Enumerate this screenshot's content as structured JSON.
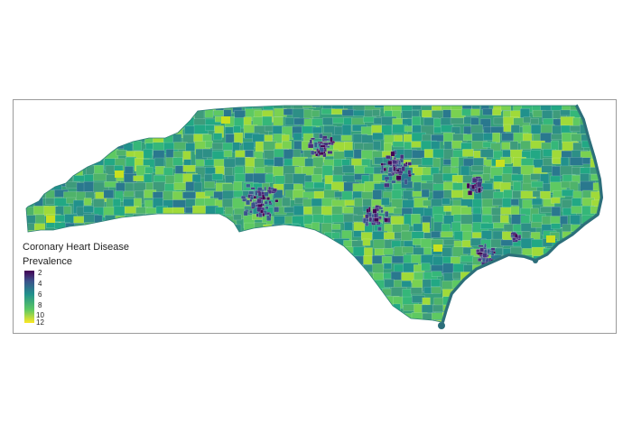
{
  "map": {
    "legend": {
      "title_line1": "Coronary Heart Disease",
      "title_line2": "Prevalence",
      "ticks": [
        "2",
        "4",
        "6",
        "8",
        "10",
        "12"
      ],
      "scale": "viridis",
      "range": [
        2,
        12
      ]
    },
    "colors": {
      "low": "#440154",
      "mid_low": "#3b528b",
      "mid": "#21918c",
      "mid_high": "#5ec962",
      "high": "#fde725",
      "coast_outline": "#2c6e7a",
      "frame": "#9a9a9a"
    }
  }
}
